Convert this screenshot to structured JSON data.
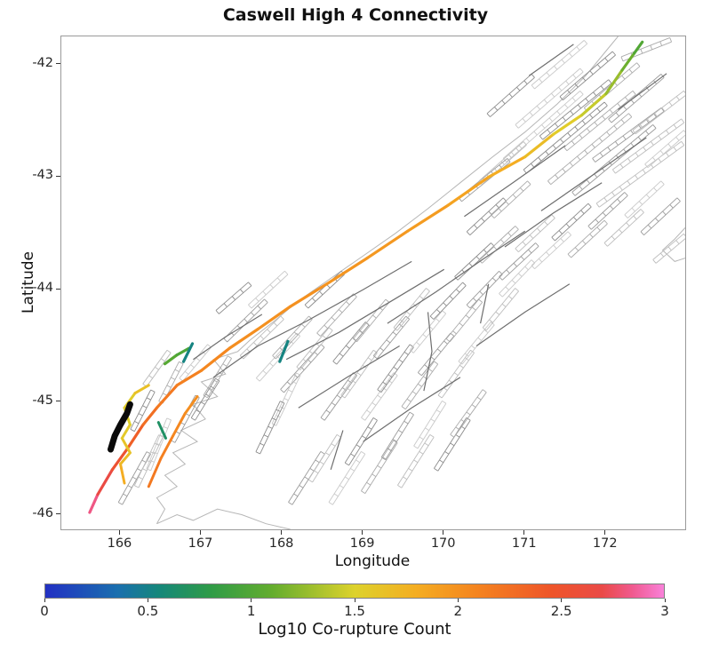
{
  "figure": {
    "title": "Caswell High 4 Connectivity",
    "xlabel": "Longitude",
    "ylabel": "Latitude",
    "colorbar_label": "Log10 Co-rupture Count"
  },
  "chart_data": {
    "type": "line",
    "subtype": "geographic-fault-connectivity-map",
    "title": "Caswell High 4 Connectivity",
    "xlabel": "Longitude",
    "ylabel": "Latitude",
    "xlim": [
      165.27,
      172.98
    ],
    "ylim": [
      -46.13,
      -41.75
    ],
    "x_ticks": [
      166,
      167,
      168,
      169,
      170,
      171,
      172
    ],
    "x_tick_labels": [
      "166",
      "167",
      "168",
      "169",
      "170",
      "171",
      "172"
    ],
    "y_ticks": [
      -42,
      -43,
      -44,
      -45,
      -46
    ],
    "y_tick_labels": [
      "-42",
      "-43",
      "-44",
      "-45",
      "-46"
    ],
    "grid": false,
    "legend": "none",
    "colorbar": {
      "label": "Log10 Co-rupture Count",
      "range": [
        0,
        3
      ],
      "tick_values": [
        0,
        0.5,
        1,
        1.5,
        2,
        2.5,
        3
      ],
      "tick_labels": [
        "0",
        "0.5",
        "1",
        "1.5",
        "2",
        "2.5",
        "3"
      ],
      "stops": [
        [
          0.0,
          "#2230c3"
        ],
        [
          0.35,
          "#1a6fae"
        ],
        [
          0.55,
          "#15877b"
        ],
        [
          0.8,
          "#2f9b47"
        ],
        [
          1.1,
          "#64ad2e"
        ],
        [
          1.5,
          "#ddd22c"
        ],
        [
          1.8,
          "#f4ad22"
        ],
        [
          2.1,
          "#f4831f"
        ],
        [
          2.45,
          "#ee5529"
        ],
        [
          2.7,
          "#ea4a47"
        ],
        [
          2.85,
          "#f05a90"
        ],
        [
          3.0,
          "#f981d9"
        ]
      ]
    },
    "ruptures": [
      {
        "name": "alpine-main-trace",
        "width": 3.2,
        "points": [
          [
            165.62,
            -45.98,
            2.9
          ],
          [
            165.72,
            -45.82,
            2.75
          ],
          [
            165.9,
            -45.6,
            2.6
          ],
          [
            166.08,
            -45.42,
            2.45
          ],
          [
            166.28,
            -45.2,
            2.3
          ],
          [
            166.45,
            -45.05,
            2.2
          ],
          [
            166.7,
            -44.85,
            2.15
          ],
          [
            167.0,
            -44.72,
            2.1
          ],
          [
            167.35,
            -44.52,
            2.05
          ],
          [
            167.7,
            -44.35,
            2.0
          ],
          [
            168.1,
            -44.15,
            2.0
          ],
          [
            168.55,
            -43.95,
            2.0
          ],
          [
            169.05,
            -43.72,
            1.95
          ],
          [
            169.55,
            -43.48,
            1.95
          ],
          [
            170.05,
            -43.25,
            1.9
          ],
          [
            170.55,
            -43.0,
            1.85
          ],
          [
            171.0,
            -42.82,
            1.75
          ],
          [
            171.35,
            -42.62,
            1.6
          ],
          [
            171.7,
            -42.45,
            1.5
          ],
          [
            172.0,
            -42.26,
            1.35
          ],
          [
            172.2,
            -42.05,
            1.2
          ],
          [
            172.35,
            -41.9,
            1.05
          ],
          [
            172.45,
            -41.8,
            0.95
          ]
        ]
      },
      {
        "name": "inner-yellow-strand",
        "width": 3.0,
        "points": [
          [
            166.05,
            -45.72,
            1.85
          ],
          [
            166.0,
            -45.55,
            1.75
          ],
          [
            166.12,
            -45.45,
            1.65
          ],
          [
            166.02,
            -45.32,
            1.6
          ],
          [
            166.12,
            -45.2,
            1.55
          ],
          [
            166.05,
            -45.05,
            1.5
          ],
          [
            166.18,
            -44.92,
            1.6
          ],
          [
            166.35,
            -44.85,
            1.7
          ]
        ]
      },
      {
        "name": "orange-branch",
        "width": 3.0,
        "points": [
          [
            166.35,
            -45.75,
            2.2
          ],
          [
            166.5,
            -45.5,
            2.15
          ],
          [
            166.65,
            -45.3,
            2.1
          ],
          [
            166.8,
            -45.1,
            2.05
          ],
          [
            166.95,
            -44.95,
            2.0
          ]
        ]
      },
      {
        "name": "green-segment",
        "width": 3.2,
        "points": [
          [
            166.55,
            -44.66,
            1.05
          ],
          [
            166.7,
            -44.58,
            1.0
          ],
          [
            166.85,
            -44.52,
            0.95
          ]
        ]
      },
      {
        "name": "teal-segment-west",
        "width": 3.2,
        "points": [
          [
            166.89,
            -44.48,
            0.55
          ],
          [
            166.78,
            -44.64,
            0.5
          ]
        ]
      },
      {
        "name": "teal-segment-east",
        "width": 3.2,
        "points": [
          [
            168.07,
            -44.46,
            0.55
          ],
          [
            167.97,
            -44.64,
            0.5
          ]
        ]
      },
      {
        "name": "teal-segment-south",
        "width": 3.0,
        "points": [
          [
            166.47,
            -45.18,
            0.7
          ],
          [
            166.56,
            -45.32,
            0.62
          ]
        ]
      }
    ],
    "highlight_black": {
      "name": "black-highlight-section",
      "color": "#0a0a0a",
      "width": 7,
      "points": [
        [
          165.88,
          -45.42
        ],
        [
          165.93,
          -45.3
        ],
        [
          166.0,
          -45.2
        ],
        [
          166.08,
          -45.1
        ],
        [
          166.12,
          -45.02
        ]
      ]
    },
    "coastlines": [
      [
        [
          166.45,
          -46.08
        ],
        [
          166.55,
          -45.95
        ],
        [
          166.45,
          -45.85
        ],
        [
          166.7,
          -45.75
        ],
        [
          166.55,
          -45.65
        ],
        [
          166.8,
          -45.55
        ],
        [
          166.65,
          -45.45
        ],
        [
          166.95,
          -45.35
        ],
        [
          166.75,
          -45.25
        ],
        [
          167.05,
          -45.15
        ],
        [
          166.9,
          -45.02
        ],
        [
          167.2,
          -44.95
        ],
        [
          167.0,
          -44.82
        ],
        [
          167.3,
          -44.75
        ],
        [
          167.15,
          -44.62
        ],
        [
          167.45,
          -44.55
        ],
        [
          167.6,
          -44.45
        ],
        [
          167.9,
          -44.28
        ],
        [
          168.2,
          -44.1
        ],
        [
          168.6,
          -43.9
        ],
        [
          169.0,
          -43.7
        ],
        [
          169.4,
          -43.5
        ],
        [
          169.8,
          -43.28
        ],
        [
          170.2,
          -43.05
        ],
        [
          170.6,
          -42.82
        ],
        [
          171.0,
          -42.6
        ],
        [
          171.4,
          -42.35
        ],
        [
          171.75,
          -42.1
        ],
        [
          172.0,
          -41.88
        ],
        [
          172.15,
          -41.75
        ]
      ],
      [
        [
          166.45,
          -46.08
        ],
        [
          166.7,
          -46.0
        ],
        [
          166.9,
          -46.05
        ],
        [
          167.2,
          -45.95
        ],
        [
          167.5,
          -46.0
        ],
        [
          167.8,
          -46.08
        ],
        [
          168.1,
          -46.13
        ]
      ],
      [
        [
          172.98,
          -43.45
        ],
        [
          172.85,
          -43.55
        ],
        [
          172.7,
          -43.65
        ],
        [
          172.85,
          -43.75
        ],
        [
          172.98,
          -43.72
        ]
      ]
    ],
    "fault_lines": [
      [
        [
          167.15,
          -44.78
        ],
        [
          167.7,
          -44.5
        ],
        [
          168.3,
          -44.28
        ],
        [
          169.0,
          -44.0
        ],
        [
          169.6,
          -43.75
        ]
      ],
      [
        [
          168.05,
          -44.62
        ],
        [
          168.7,
          -44.38
        ],
        [
          169.4,
          -44.08
        ],
        [
          170.0,
          -43.82
        ]
      ],
      [
        [
          169.3,
          -44.3
        ],
        [
          169.9,
          -44.02
        ],
        [
          170.5,
          -43.72
        ],
        [
          171.0,
          -43.48
        ]
      ],
      [
        [
          170.25,
          -43.35
        ],
        [
          170.85,
          -43.05
        ],
        [
          171.5,
          -42.72
        ]
      ],
      [
        [
          166.9,
          -44.62
        ],
        [
          167.3,
          -44.42
        ],
        [
          167.75,
          -44.22
        ]
      ],
      [
        [
          168.2,
          -45.05
        ],
        [
          168.8,
          -44.78
        ],
        [
          169.45,
          -44.5
        ]
      ],
      [
        [
          169.0,
          -45.35
        ],
        [
          169.6,
          -45.05
        ],
        [
          170.2,
          -44.78
        ]
      ],
      [
        [
          170.4,
          -44.5
        ],
        [
          171.0,
          -44.2
        ],
        [
          171.55,
          -43.95
        ]
      ],
      [
        [
          171.2,
          -43.3
        ],
        [
          171.9,
          -42.95
        ],
        [
          172.5,
          -42.65
        ]
      ],
      [
        [
          171.05,
          -42.1
        ],
        [
          171.6,
          -41.82
        ]
      ],
      [
        [
          170.75,
          -43.62
        ],
        [
          171.35,
          -43.32
        ],
        [
          171.95,
          -43.05
        ]
      ],
      [
        [
          172.15,
          -42.4
        ],
        [
          172.75,
          -42.08
        ]
      ],
      [
        [
          169.75,
          -44.9
        ],
        [
          169.85,
          -44.55
        ],
        [
          169.8,
          -44.2
        ]
      ],
      [
        [
          170.45,
          -44.3
        ],
        [
          170.55,
          -43.95
        ]
      ],
      [
        [
          168.6,
          -45.6
        ],
        [
          168.75,
          -45.25
        ]
      ]
    ],
    "fault_ladders": [
      [
        166.0,
        -45.9,
        166.35,
        -45.45
      ],
      [
        166.2,
        -45.75,
        166.5,
        -45.3
      ],
      [
        166.35,
        -45.6,
        166.6,
        -45.15
      ],
      [
        166.15,
        -45.25,
        166.4,
        -44.9
      ],
      [
        166.5,
        -45.0,
        166.75,
        -44.65
      ],
      [
        166.65,
        -45.35,
        166.95,
        -44.95
      ],
      [
        166.3,
        -44.85,
        166.6,
        -44.55
      ],
      [
        166.75,
        -44.8,
        167.1,
        -44.5
      ],
      [
        166.9,
        -45.15,
        167.2,
        -44.8
      ],
      [
        167.05,
        -44.95,
        167.35,
        -44.6
      ],
      [
        167.3,
        -44.45,
        167.8,
        -44.1
      ],
      [
        167.5,
        -44.6,
        168.0,
        -44.25
      ],
      [
        167.7,
        -44.8,
        168.2,
        -44.4
      ],
      [
        167.2,
        -44.2,
        167.6,
        -43.95
      ],
      [
        167.9,
        -44.6,
        168.35,
        -44.25
      ],
      [
        168.0,
        -44.9,
        168.5,
        -44.5
      ],
      [
        168.2,
        -44.7,
        168.6,
        -44.35
      ],
      [
        167.6,
        -44.15,
        168.05,
        -43.85
      ],
      [
        168.3,
        -44.15,
        168.75,
        -43.85
      ],
      [
        168.45,
        -44.4,
        168.9,
        -44.05
      ],
      [
        168.1,
        -45.9,
        168.5,
        -45.45
      ],
      [
        168.35,
        -45.7,
        168.7,
        -45.3
      ],
      [
        168.6,
        -45.9,
        169.0,
        -45.45
      ],
      [
        168.8,
        -45.55,
        169.15,
        -45.15
      ],
      [
        169.0,
        -45.8,
        169.4,
        -45.35
      ],
      [
        169.25,
        -45.5,
        169.6,
        -45.1
      ],
      [
        169.45,
        -45.75,
        169.85,
        -45.3
      ],
      [
        169.65,
        -45.4,
        170.0,
        -45.0
      ],
      [
        169.9,
        -45.6,
        170.3,
        -45.15
      ],
      [
        170.1,
        -45.3,
        170.5,
        -44.9
      ],
      [
        168.5,
        -45.15,
        168.9,
        -44.75
      ],
      [
        168.75,
        -44.95,
        169.15,
        -44.55
      ],
      [
        169.0,
        -45.15,
        169.4,
        -44.75
      ],
      [
        169.2,
        -44.9,
        169.6,
        -44.5
      ],
      [
        169.5,
        -45.05,
        169.9,
        -44.65
      ],
      [
        169.7,
        -44.75,
        170.1,
        -44.4
      ],
      [
        169.95,
        -44.95,
        170.35,
        -44.55
      ],
      [
        170.2,
        -44.65,
        170.6,
        -44.3
      ],
      [
        168.65,
        -44.65,
        169.05,
        -44.3
      ],
      [
        168.9,
        -44.45,
        169.3,
        -44.1
      ],
      [
        169.15,
        -44.6,
        169.55,
        -44.25
      ],
      [
        169.4,
        -44.35,
        169.8,
        -44.0
      ],
      [
        169.6,
        -44.55,
        170.0,
        -44.2
      ],
      [
        169.85,
        -44.25,
        170.25,
        -43.95
      ],
      [
        170.05,
        -44.45,
        170.45,
        -44.1
      ],
      [
        170.3,
        -44.15,
        170.7,
        -43.85
      ],
      [
        170.5,
        -44.35,
        170.9,
        -44.0
      ],
      [
        170.7,
        -44.05,
        171.1,
        -43.75
      ],
      [
        170.15,
        -43.9,
        170.6,
        -43.6
      ],
      [
        170.45,
        -43.75,
        170.9,
        -43.45
      ],
      [
        170.7,
        -43.9,
        171.15,
        -43.6
      ],
      [
        170.9,
        -43.65,
        171.35,
        -43.35
      ],
      [
        171.1,
        -43.8,
        171.55,
        -43.5
      ],
      [
        171.35,
        -43.55,
        171.8,
        -43.25
      ],
      [
        171.55,
        -43.7,
        172.0,
        -43.4
      ],
      [
        171.8,
        -43.45,
        172.25,
        -43.15
      ],
      [
        172.0,
        -43.6,
        172.45,
        -43.3
      ],
      [
        172.25,
        -43.35,
        172.7,
        -43.05
      ],
      [
        170.3,
        -43.5,
        170.75,
        -43.2
      ],
      [
        170.6,
        -43.35,
        171.05,
        -43.05
      ],
      [
        172.45,
        -43.5,
        172.9,
        -43.2
      ],
      [
        172.6,
        -43.75,
        172.98,
        -43.52
      ],
      [
        170.75,
        -42.85,
        171.7,
        -42.25
      ],
      [
        171.0,
        -42.95,
        172.0,
        -42.35
      ],
      [
        171.3,
        -43.05,
        172.3,
        -42.45
      ],
      [
        171.6,
        -43.15,
        172.6,
        -42.55
      ],
      [
        171.9,
        -43.25,
        172.95,
        -42.7
      ],
      [
        170.9,
        -42.55,
        171.7,
        -42.05
      ],
      [
        171.2,
        -42.65,
        172.05,
        -42.15
      ],
      [
        171.5,
        -42.75,
        172.35,
        -42.25
      ],
      [
        171.85,
        -42.85,
        172.7,
        -42.4
      ],
      [
        172.1,
        -42.95,
        172.95,
        -42.5
      ],
      [
        171.1,
        -42.2,
        171.75,
        -41.8
      ],
      [
        171.45,
        -42.3,
        172.1,
        -41.9
      ],
      [
        171.75,
        -42.4,
        172.4,
        -42.0
      ],
      [
        172.05,
        -42.5,
        172.7,
        -42.1
      ],
      [
        172.35,
        -42.6,
        172.98,
        -42.25
      ],
      [
        172.5,
        -42.9,
        172.98,
        -42.6
      ],
      [
        170.55,
        -42.45,
        171.1,
        -42.1
      ],
      [
        172.2,
        -41.95,
        172.8,
        -41.78
      ],
      [
        170.2,
        -43.2,
        170.8,
        -42.85
      ],
      [
        170.45,
        -43.05,
        171.0,
        -42.7
      ],
      [
        167.9,
        -45.2,
        168.2,
        -44.75
      ],
      [
        167.7,
        -45.45,
        168.0,
        -45.0
      ]
    ]
  }
}
